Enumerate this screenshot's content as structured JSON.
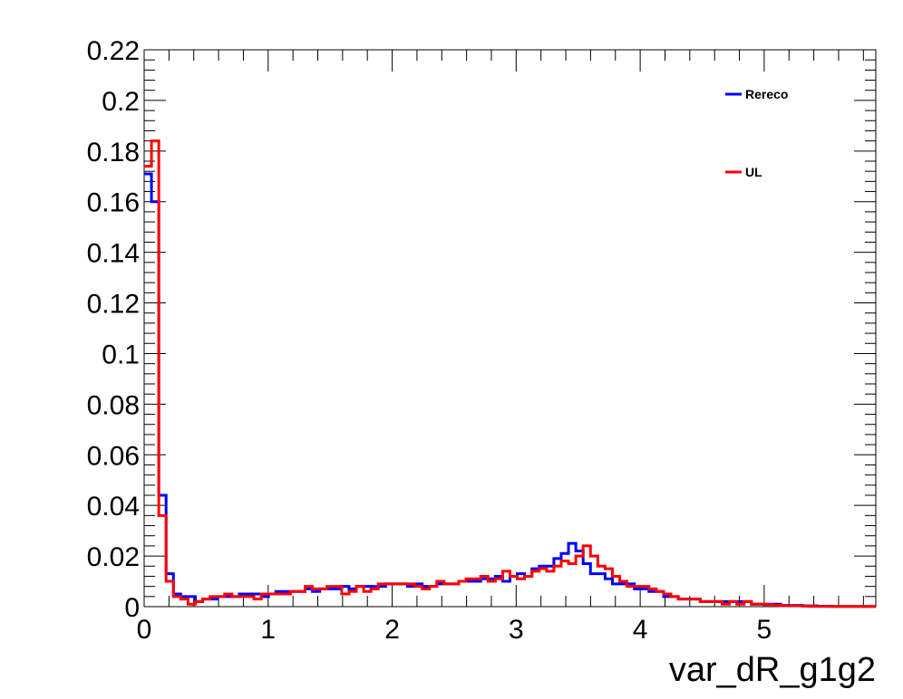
{
  "chart_data": {
    "type": "line",
    "xlabel": "var_dR_g1g2",
    "ylabel": "",
    "xlim": [
      0,
      5.9
    ],
    "ylim": [
      0,
      0.22
    ],
    "x_ticks": [
      "0",
      "1",
      "2",
      "3",
      "4",
      "5"
    ],
    "y_ticks": [
      "0",
      "0.02",
      "0.04",
      "0.06",
      "0.08",
      "0.1",
      "0.12",
      "0.14",
      "0.16",
      "0.18",
      "0.2",
      "0.22"
    ],
    "bin_width": 0.059,
    "legend_position": "top-right",
    "grid": false,
    "series": [
      {
        "name": "Rereco",
        "color": "#0000ff",
        "values": [
          0.171,
          0.16,
          0.044,
          0.013,
          0.005,
          0.004,
          0.004,
          0.002,
          0.003,
          0.003,
          0.004,
          0.004,
          0.004,
          0.005,
          0.005,
          0.005,
          0.004,
          0.005,
          0.006,
          0.006,
          0.006,
          0.006,
          0.007,
          0.006,
          0.007,
          0.007,
          0.007,
          0.008,
          0.007,
          0.008,
          0.008,
          0.008,
          0.008,
          0.009,
          0.009,
          0.009,
          0.008,
          0.009,
          0.008,
          0.008,
          0.009,
          0.009,
          0.009,
          0.01,
          0.01,
          0.01,
          0.011,
          0.011,
          0.012,
          0.01,
          0.012,
          0.013,
          0.012,
          0.015,
          0.016,
          0.016,
          0.019,
          0.021,
          0.025,
          0.022,
          0.017,
          0.013,
          0.013,
          0.011,
          0.009,
          0.009,
          0.009,
          0.007,
          0.007,
          0.006,
          0.006,
          0.004,
          0.004,
          0.003,
          0.003,
          0.003,
          0.002,
          0.002,
          0.002,
          0.002,
          0.002,
          0.002,
          0.002,
          0.001,
          0.001,
          0.001,
          0.001,
          0.0005,
          0.0005,
          0.0005,
          0.0003,
          0.0003,
          0.0002,
          0.0002,
          0.0001,
          0.0001,
          0.0001,
          0.0001,
          0.0001,
          0.0001
        ]
      },
      {
        "name": "UL",
        "color": "#ff0000",
        "values": [
          0.174,
          0.184,
          0.036,
          0.01,
          0.004,
          0.003,
          0.001,
          0.002,
          0.003,
          0.004,
          0.004,
          0.005,
          0.004,
          0.004,
          0.004,
          0.003,
          0.005,
          0.005,
          0.005,
          0.005,
          0.006,
          0.006,
          0.008,
          0.007,
          0.007,
          0.008,
          0.008,
          0.005,
          0.006,
          0.008,
          0.006,
          0.007,
          0.009,
          0.009,
          0.009,
          0.009,
          0.009,
          0.008,
          0.007,
          0.008,
          0.01,
          0.009,
          0.009,
          0.01,
          0.011,
          0.011,
          0.012,
          0.01,
          0.011,
          0.014,
          0.012,
          0.011,
          0.012,
          0.014,
          0.015,
          0.014,
          0.016,
          0.018,
          0.017,
          0.02,
          0.024,
          0.02,
          0.016,
          0.015,
          0.012,
          0.01,
          0.008,
          0.008,
          0.008,
          0.007,
          0.006,
          0.005,
          0.004,
          0.003,
          0.003,
          0.003,
          0.002,
          0.002,
          0.002,
          0.001,
          0.002,
          0.001,
          0.002,
          0.001,
          0.001,
          0.0008,
          0.0006,
          0.0004,
          0.0003,
          0.0003,
          0.0002,
          0.0001,
          0.0001,
          0.0001,
          0.0001,
          0.0001,
          0.0001,
          0.0001,
          0.0001,
          0.0001
        ]
      }
    ]
  }
}
